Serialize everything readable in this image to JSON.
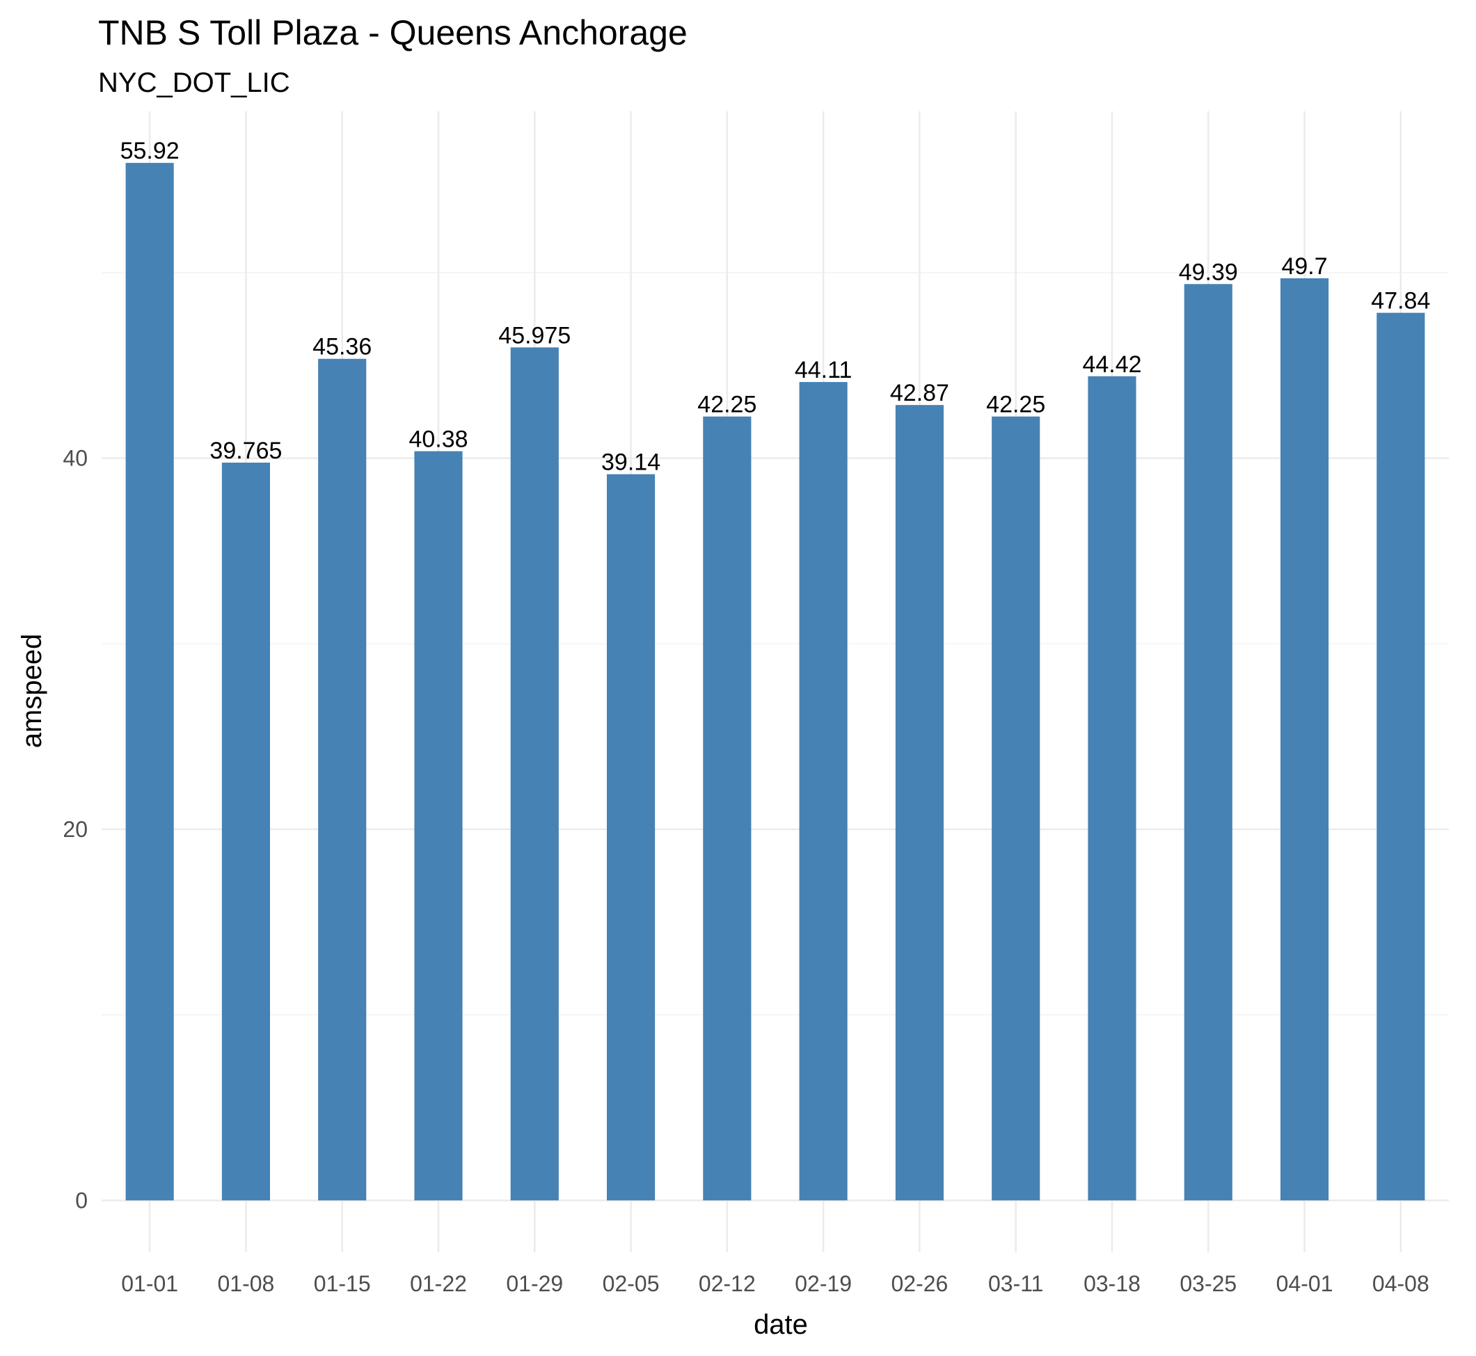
{
  "chart_data": {
    "type": "bar",
    "title": "TNB S Toll Plaza - Queens Anchorage",
    "subtitle": "NYC_DOT_LIC",
    "xlabel": "date",
    "ylabel": "amspeed",
    "categories": [
      "01-01",
      "01-08",
      "01-15",
      "01-22",
      "01-29",
      "02-05",
      "02-12",
      "02-19",
      "02-26",
      "03-11",
      "03-18",
      "03-25",
      "04-01",
      "04-08"
    ],
    "values": [
      55.92,
      39.765,
      45.36,
      40.38,
      45.975,
      39.14,
      42.25,
      44.11,
      42.87,
      42.25,
      44.42,
      49.39,
      49.7,
      47.84
    ],
    "value_labels": [
      "55.92",
      "39.765",
      "45.36",
      "40.38",
      "45.975",
      "39.14",
      "42.25",
      "44.11",
      "42.87",
      "42.25",
      "44.42",
      "49.39",
      "49.7",
      "47.84"
    ],
    "yticks": [
      0,
      20,
      40
    ],
    "ylim": [
      -2.8,
      58.7
    ],
    "grid": true,
    "bar_color": "#4682b4"
  }
}
